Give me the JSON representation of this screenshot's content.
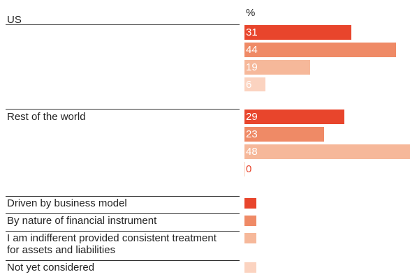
{
  "chart_data": {
    "type": "hbar-grouped",
    "unit_label": "%",
    "categories": [
      "US",
      "Rest of the world"
    ],
    "series": [
      {
        "name": "Driven by business model",
        "color": "#e8452c",
        "values": [
          31,
          29
        ]
      },
      {
        "name": "By nature of financial instrument",
        "color": "#ef8a66",
        "values": [
          44,
          23
        ]
      },
      {
        "name": "I am indifferent provided consistent treatment for assets and liabilities",
        "color": "#f6b89a",
        "values": [
          19,
          48
        ]
      },
      {
        "name": "Not yet considered",
        "color": "#fbd3c0",
        "values": [
          6,
          0
        ]
      }
    ],
    "zero_label_color": "#e8452c"
  }
}
